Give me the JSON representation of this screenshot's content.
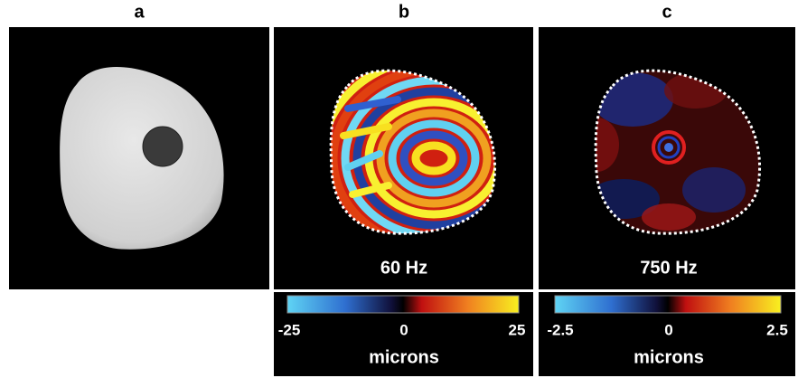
{
  "panels": [
    {
      "label": "a"
    },
    {
      "label": "b",
      "caption": "60 Hz",
      "colorbar": {
        "ticks": [
          -25,
          0,
          25
        ],
        "label": "microns"
      }
    },
    {
      "label": "c",
      "caption": "750 Hz",
      "colorbar": {
        "ticks": [
          -2.5,
          0,
          2.5
        ],
        "label": "microns"
      }
    }
  ]
}
